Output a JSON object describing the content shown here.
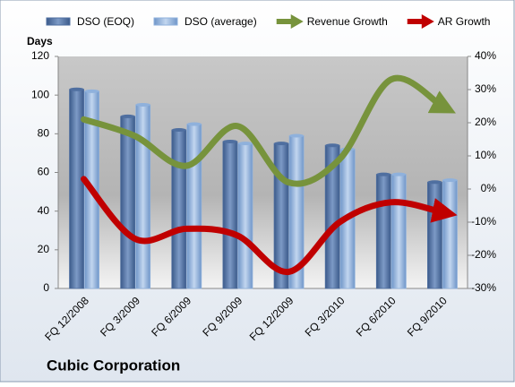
{
  "chart_data": {
    "type": "bar-line",
    "title": "Cubic Corporation",
    "y_label": "Days",
    "categories": [
      "FQ 12/2008",
      "FQ 3/2009",
      "FQ 6/2009",
      "FQ 9/2009",
      "FQ 12/2009",
      "FQ 3/2010",
      "FQ 6/2010",
      "FQ 9/2010"
    ],
    "series": [
      {
        "name": "DSO (EOQ)",
        "color": "#4f6fa0",
        "type": "bar",
        "values": [
          103,
          89,
          82,
          76,
          75,
          74,
          59,
          55
        ]
      },
      {
        "name": "DSO (average)",
        "color": "#8fb1dc",
        "type": "bar",
        "values": [
          102,
          95,
          85,
          75,
          79,
          72,
          59,
          56
        ]
      },
      {
        "name": "Revenue Growth",
        "color": "#77933c",
        "type": "line",
        "axis": "y2",
        "values": [
          21,
          16,
          7,
          19,
          2,
          9,
          33,
          25
        ]
      },
      {
        "name": "AR Growth",
        "color": "#c00000",
        "type": "line",
        "axis": "y2",
        "values": [
          3,
          -15,
          -12,
          -14,
          -25,
          -10,
          -4,
          -7
        ]
      }
    ],
    "ylim": [
      0,
      120
    ],
    "yticks": [
      0,
      20,
      40,
      60,
      80,
      100,
      120
    ],
    "y2lim": [
      -30,
      40
    ],
    "y2ticks": [
      {
        "value": -30,
        "label": "-30%"
      },
      {
        "value": -20,
        "label": "-20%"
      },
      {
        "value": -10,
        "label": "-10%"
      },
      {
        "value": 0,
        "label": "0%"
      },
      {
        "value": 10,
        "label": "10%"
      },
      {
        "value": 20,
        "label": "20%"
      },
      {
        "value": 30,
        "label": "30%"
      },
      {
        "value": 40,
        "label": "40%"
      }
    ],
    "legend": "top"
  }
}
